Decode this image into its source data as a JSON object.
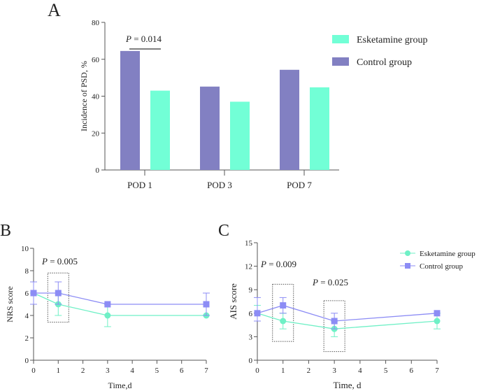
{
  "colors": {
    "esketamine": "#72ffd6",
    "control": "#8280c2",
    "esketamine_line": "#6ff0c6",
    "control_line": "#8c8cf5",
    "axis": "#555555"
  },
  "chart_data": [
    {
      "panel": "A",
      "type": "bar",
      "categories": [
        "POD 1",
        "POD 3",
        "POD 7"
      ],
      "series": [
        {
          "name": "Control group",
          "values": [
            64.5,
            45.2,
            54.3
          ]
        },
        {
          "name": "Esketamine group",
          "values": [
            43.0,
            37.0,
            44.8
          ]
        }
      ],
      "ylabel": "Incidence of PSD, %",
      "ylim": [
        0,
        80
      ],
      "yticks": [
        0,
        20,
        40,
        60,
        80
      ],
      "legend": [
        "Esketamine group",
        "Control group"
      ],
      "legend_position": "top-right",
      "annotation": {
        "italic": "P",
        "text": " = 0.014",
        "category": "POD 1"
      }
    },
    {
      "panel": "B",
      "type": "line",
      "x": [
        0,
        1,
        3,
        7
      ],
      "series": [
        {
          "name": "Esketamine group",
          "marker": "circle",
          "values": [
            6,
            5,
            4,
            4
          ],
          "lower": [
            5,
            4,
            3,
            4
          ],
          "upper": [
            6,
            6,
            5,
            4
          ]
        },
        {
          "name": "Control group",
          "marker": "square",
          "values": [
            6,
            6,
            5,
            5
          ],
          "lower": [
            5,
            5,
            5,
            4
          ],
          "upper": [
            7,
            7,
            5,
            6
          ]
        }
      ],
      "xlabel": "Time,d",
      "ylabel": "NRS score",
      "xlim": [
        0,
        7
      ],
      "ylim": [
        0,
        10
      ],
      "xticks": [
        0,
        1,
        2,
        3,
        4,
        5,
        6,
        7
      ],
      "yticks": [
        0,
        2,
        4,
        6,
        8,
        10
      ],
      "annotations": [
        {
          "italic": "P",
          "text": " = 0.005",
          "x": 1
        }
      ]
    },
    {
      "panel": "C",
      "type": "line",
      "x": [
        0,
        1,
        3,
        7
      ],
      "series": [
        {
          "name": "Esketamine group",
          "marker": "circle",
          "values": [
            6,
            5,
            4,
            5
          ],
          "lower": [
            5,
            4,
            3,
            4
          ],
          "upper": [
            7,
            6,
            5,
            6
          ]
        },
        {
          "name": "Control group",
          "marker": "square",
          "values": [
            6,
            7,
            5,
            6
          ],
          "lower": [
            5,
            6,
            4,
            6
          ],
          "upper": [
            8,
            8,
            6,
            6
          ]
        }
      ],
      "xlabel": "Time,  d",
      "ylabel": "AIS score",
      "xlim": [
        0,
        7
      ],
      "ylim": [
        0,
        15
      ],
      "xticks": [
        0,
        1,
        2,
        3,
        4,
        5,
        6,
        7
      ],
      "yticks": [
        0,
        3,
        6,
        9,
        12,
        15
      ],
      "legend": [
        "Esketamine group",
        "Control group"
      ],
      "legend_position": "top-right",
      "annotations": [
        {
          "italic": "P",
          "text": " = 0.009",
          "x": 1
        },
        {
          "italic": "P",
          "text": " = 0.025",
          "x": 3
        }
      ]
    }
  ]
}
